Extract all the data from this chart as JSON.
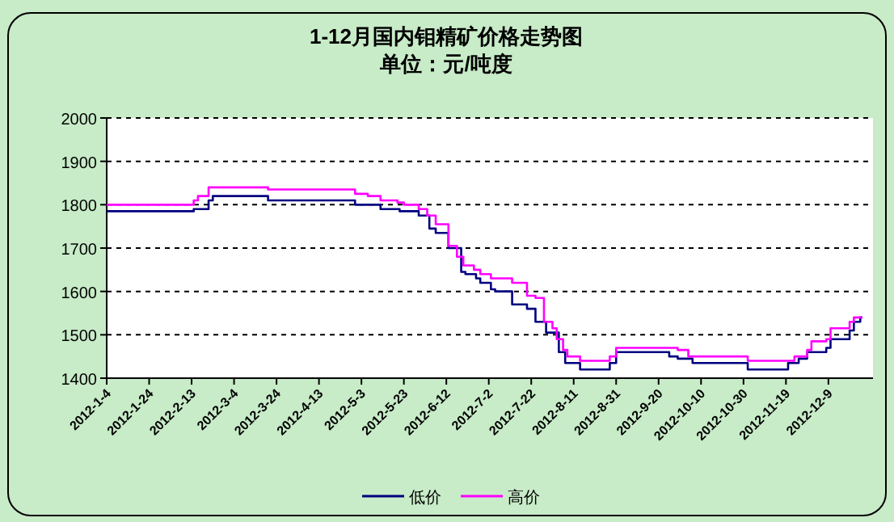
{
  "chart_data": {
    "type": "step",
    "title": "1-12月国内钼精矿价格走势图",
    "subtitle": "单位：元/吨度",
    "xlim": [
      "2012-01-04",
      "2012-12-30"
    ],
    "xticks": [
      {
        "value": "2012-01-04",
        "label": "2012-1-4"
      },
      {
        "value": "2012-01-24",
        "label": "2012-1-24"
      },
      {
        "value": "2012-02-13",
        "label": "2012-2-13"
      },
      {
        "value": "2012-03-04",
        "label": "2012-3-4"
      },
      {
        "value": "2012-03-24",
        "label": "2012-3-24"
      },
      {
        "value": "2012-04-13",
        "label": "2012-4-13"
      },
      {
        "value": "2012-05-03",
        "label": "2012-5-3"
      },
      {
        "value": "2012-05-23",
        "label": "2012-5-23"
      },
      {
        "value": "2012-06-12",
        "label": "2012-6-12"
      },
      {
        "value": "2012-07-02",
        "label": "2012-7-2"
      },
      {
        "value": "2012-07-22",
        "label": "2012-7-22"
      },
      {
        "value": "2012-08-11",
        "label": "2012-8-11"
      },
      {
        "value": "2012-08-31",
        "label": "2012-8-31"
      },
      {
        "value": "2012-09-20",
        "label": "2012-9-20"
      },
      {
        "value": "2012-10-10",
        "label": "2012-10-10"
      },
      {
        "value": "2012-10-30",
        "label": "2012-10-30"
      },
      {
        "value": "2012-11-19",
        "label": "2012-11-19"
      },
      {
        "value": "2012-12-09",
        "label": "2012-12-9"
      }
    ],
    "ylim": [
      1400,
      2000
    ],
    "yticks": [
      1400,
      1500,
      1600,
      1700,
      1800,
      1900,
      2000
    ],
    "grid": "y",
    "legend": "bottom",
    "line_style": "solid",
    "marker": "none",
    "series": [
      {
        "name": "低价",
        "color": "#000080",
        "x": [
          "2012-01-04",
          "2012-02-14",
          "2012-02-21",
          "2012-02-23",
          "2012-03-20",
          "2012-04-30",
          "2012-05-12",
          "2012-05-21",
          "2012-05-30",
          "2012-06-04",
          "2012-06-07",
          "2012-06-13",
          "2012-06-19",
          "2012-06-21",
          "2012-06-26",
          "2012-06-28",
          "2012-07-03",
          "2012-07-05",
          "2012-07-13",
          "2012-07-20",
          "2012-07-24",
          "2012-07-29",
          "2012-08-04",
          "2012-08-07",
          "2012-08-14",
          "2012-08-28",
          "2012-08-31",
          "2012-09-25",
          "2012-09-29",
          "2012-10-06",
          "2012-11-01",
          "2012-11-20",
          "2012-11-25",
          "2012-11-29",
          "2012-12-08",
          "2012-12-10",
          "2012-12-19",
          "2012-12-21",
          "2012-12-24",
          "2012-12-25"
        ],
        "values": [
          1785,
          1790,
          1810,
          1820,
          1810,
          1800,
          1790,
          1785,
          1775,
          1745,
          1735,
          1700,
          1645,
          1640,
          1630,
          1620,
          1605,
          1600,
          1570,
          1560,
          1530,
          1505,
          1460,
          1435,
          1420,
          1435,
          1460,
          1450,
          1445,
          1435,
          1420,
          1435,
          1445,
          1460,
          1470,
          1490,
          1510,
          1530,
          1540,
          1540
        ]
      },
      {
        "name": "高价",
        "color": "#ff00ff",
        "x": [
          "2012-01-04",
          "2012-02-14",
          "2012-02-16",
          "2012-02-21",
          "2012-03-20",
          "2012-04-30",
          "2012-05-06",
          "2012-05-12",
          "2012-05-20",
          "2012-05-23",
          "2012-05-30",
          "2012-06-03",
          "2012-06-07",
          "2012-06-13",
          "2012-06-17",
          "2012-06-20",
          "2012-06-25",
          "2012-06-28",
          "2012-07-03",
          "2012-07-13",
          "2012-07-20",
          "2012-07-24",
          "2012-07-28",
          "2012-08-01",
          "2012-08-03",
          "2012-08-06",
          "2012-08-08",
          "2012-08-14",
          "2012-08-28",
          "2012-08-31",
          "2012-09-29",
          "2012-10-04",
          "2012-11-01",
          "2012-11-23",
          "2012-11-29",
          "2012-12-01",
          "2012-12-08",
          "2012-12-10",
          "2012-12-19",
          "2012-12-21",
          "2012-12-25"
        ],
        "values": [
          1800,
          1810,
          1820,
          1840,
          1835,
          1825,
          1820,
          1810,
          1805,
          1800,
          1790,
          1775,
          1755,
          1705,
          1680,
          1660,
          1650,
          1640,
          1630,
          1620,
          1590,
          1585,
          1530,
          1515,
          1490,
          1465,
          1450,
          1440,
          1450,
          1470,
          1465,
          1450,
          1440,
          1450,
          1465,
          1485,
          1490,
          1515,
          1530,
          1540,
          1540
        ]
      }
    ]
  }
}
